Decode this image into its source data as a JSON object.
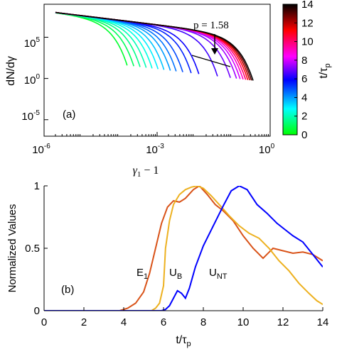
{
  "chart_data": [
    {
      "panel": "(a)",
      "type": "line",
      "xlabel": "γ1 − 1",
      "ylabel": "dN/dγ",
      "xscale": "log",
      "yscale": "log",
      "xlim": [
        1e-06,
        1
      ],
      "ylim": [
        1e-07,
        1000000000.0
      ],
      "xticks": [
        1e-06,
        0.001,
        1
      ],
      "xtick_labels": [
        "10⁻⁶",
        "10⁻³",
        "10⁰"
      ],
      "yticks": [
        100000.0,
        1,
        1e-05
      ],
      "ytick_labels": [
        "10⁵",
        "10⁰",
        "10⁻⁵"
      ],
      "annotation": "p = 1.58",
      "colorbar": {
        "label": "t/τp",
        "range": [
          0,
          14
        ],
        "ticks": [
          0,
          2,
          4,
          6,
          8,
          10,
          12,
          14
        ],
        "colormap": [
          "#00ff00",
          "#00ffff",
          "#0000ff",
          "#ff00ff",
          "#ff0000",
          "#000000"
        ]
      },
      "series_description": "family of spectra colored by t/τp; cutoff energy grows with time",
      "series": [
        {
          "t": 0.5,
          "cutoff": 0.0001
        },
        {
          "t": 1.0,
          "cutoff": 0.00015
        },
        {
          "t": 1.5,
          "cutoff": 0.00022
        },
        {
          "t": 2.0,
          "cutoff": 0.00032
        },
        {
          "t": 2.5,
          "cutoff": 0.00046
        },
        {
          "t": 3.0,
          "cutoff": 0.00066
        },
        {
          "t": 3.5,
          "cutoff": 0.00095
        },
        {
          "t": 4.0,
          "cutoff": 0.0014
        },
        {
          "t": 4.5,
          "cutoff": 0.002
        },
        {
          "t": 5.0,
          "cutoff": 0.003
        },
        {
          "t": 5.5,
          "cutoff": 0.005
        },
        {
          "t": 6.0,
          "cutoff": 0.008
        },
        {
          "t": 6.5,
          "cutoff": 0.025
        },
        {
          "t": 7.0,
          "cutoff": 0.055
        },
        {
          "t": 7.5,
          "cutoff": 0.08
        },
        {
          "t": 8.0,
          "cutoff": 0.1
        },
        {
          "t": 9.0,
          "cutoff": 0.12
        },
        {
          "t": 10.0,
          "cutoff": 0.14
        },
        {
          "t": 11.0,
          "cutoff": 0.16
        },
        {
          "t": 12.0,
          "cutoff": 0.18
        },
        {
          "t": 13.0,
          "cutoff": 0.2
        },
        {
          "t": 14.0,
          "cutoff": 0.22
        }
      ]
    },
    {
      "panel": "(b)",
      "type": "line",
      "xlabel": "t/τp",
      "ylabel": "Normalized Values",
      "xlim": [
        0,
        14
      ],
      "ylim": [
        0,
        1
      ],
      "xticks": [
        0,
        2,
        4,
        6,
        8,
        10,
        12,
        14
      ],
      "yticks": [
        0,
        0.5,
        1
      ],
      "ytick_labels": [
        "0",
        "0.5",
        "1"
      ],
      "series": [
        {
          "name": "E1",
          "color": "#d95319",
          "x": [
            0,
            3.8,
            4.2,
            4.6,
            5.0,
            5.3,
            5.6,
            5.9,
            6.2,
            6.5,
            6.8,
            7.1,
            7.5,
            7.8,
            8.2,
            8.6,
            9.0,
            9.5,
            10.0,
            10.5,
            11.0,
            11.5,
            12.0,
            12.5,
            13.0,
            13.5,
            14.0
          ],
          "y": [
            0,
            0.0,
            0.02,
            0.06,
            0.15,
            0.3,
            0.5,
            0.7,
            0.83,
            0.88,
            0.87,
            0.9,
            0.97,
            1.0,
            0.93,
            0.85,
            0.8,
            0.72,
            0.6,
            0.5,
            0.42,
            0.5,
            0.48,
            0.46,
            0.47,
            0.45,
            0.4
          ]
        },
        {
          "name": "UB",
          "color": "#edb120",
          "x": [
            0,
            5.4,
            5.6,
            5.8,
            6.0,
            6.1,
            6.3,
            6.5,
            6.8,
            7.1,
            7.4,
            7.7,
            8.0,
            8.4,
            8.8,
            9.3,
            9.8,
            10.3,
            10.8,
            11.3,
            11.8,
            12.3,
            12.8,
            13.3,
            13.7,
            14.0
          ],
          "y": [
            0,
            0.0,
            0.02,
            0.06,
            0.2,
            0.5,
            0.72,
            0.85,
            0.93,
            0.97,
            0.99,
            1.0,
            0.98,
            0.92,
            0.85,
            0.76,
            0.68,
            0.62,
            0.58,
            0.5,
            0.4,
            0.32,
            0.22,
            0.14,
            0.08,
            0.05
          ]
        },
        {
          "name": "UNT",
          "color": "#0000ff",
          "x": [
            0,
            5.9,
            6.1,
            6.3,
            6.5,
            6.7,
            6.9,
            7.1,
            7.3,
            7.6,
            8.0,
            8.5,
            9.0,
            9.4,
            9.8,
            10.2,
            10.7,
            11.2,
            11.7,
            12.1,
            12.5,
            13.0,
            13.5,
            14.0
          ],
          "y": [
            0,
            0.0,
            0.01,
            0.04,
            0.1,
            0.16,
            0.14,
            0.1,
            0.18,
            0.35,
            0.52,
            0.68,
            0.84,
            0.96,
            1.0,
            0.97,
            0.85,
            0.78,
            0.7,
            0.65,
            0.6,
            0.55,
            0.45,
            0.35
          ]
        }
      ],
      "annotations": {
        "E1": "E₁",
        "UB": "U_B",
        "UNT": "U_NT"
      }
    }
  ],
  "labels": {
    "a_panel": "(a)",
    "b_panel": "(b)",
    "a_annotation": "p = 1.58",
    "a_xlabel_main": "γ",
    "a_xlabel_sub": "1",
    "a_xlabel_rest": " − 1",
    "a_ylabel": "dN/dγ",
    "cbar_label_main": "t/τ",
    "cbar_label_sub": "p",
    "b_ylabel": "Normalized Values",
    "b_xlabel_main": "t/τ",
    "b_xlabel_sub": "p",
    "e1_main": "E",
    "e1_sub": "1",
    "ub_main": "U",
    "ub_sub": "B",
    "unt_main": "U",
    "unt_sub": "NT",
    "a_xt_base": "10",
    "a_xt_exp": [
      "-6",
      "-3",
      "0"
    ],
    "a_yt_base": "10",
    "a_yt_exp": [
      "5",
      "0",
      "-5"
    ],
    "cbar_ticks": [
      "0",
      "2",
      "4",
      "6",
      "8",
      "10",
      "12",
      "14"
    ],
    "b_xticks": [
      "0",
      "2",
      "4",
      "6",
      "8",
      "10",
      "12",
      "14"
    ],
    "b_yticks": [
      "0",
      "0.5",
      "1"
    ]
  }
}
